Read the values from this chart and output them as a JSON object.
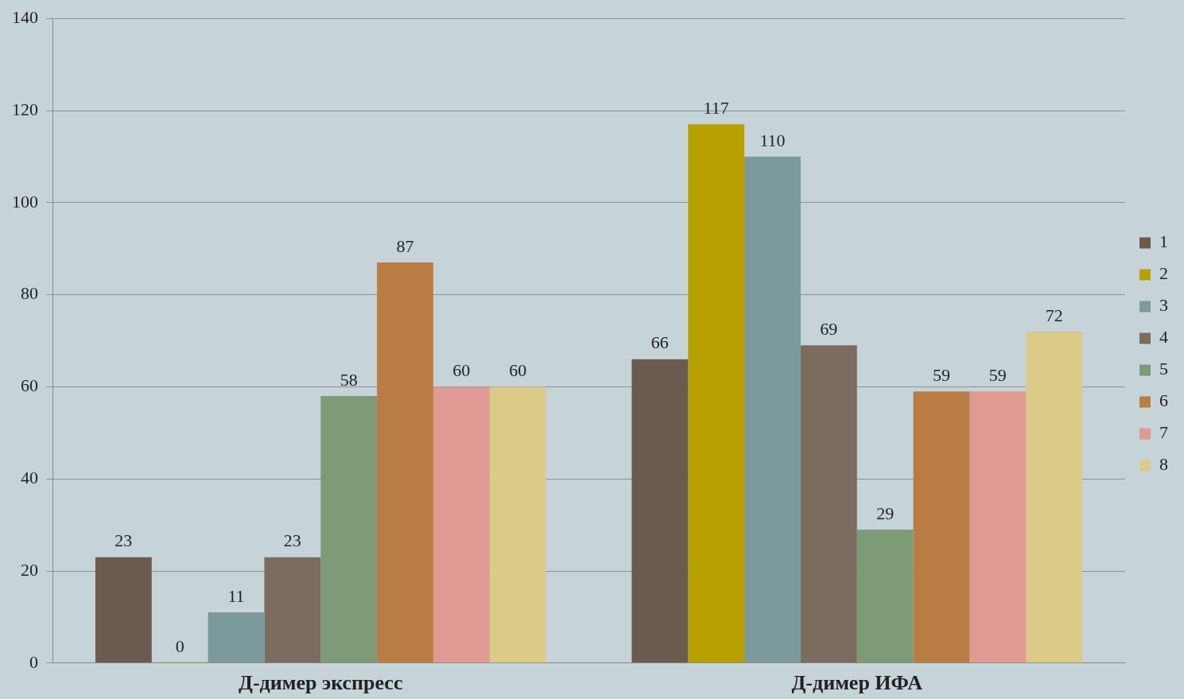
{
  "chart_data": {
    "type": "bar",
    "categories": [
      "Д-димер экспресс",
      "Д-димер ИФА"
    ],
    "series": [
      {
        "name": "1",
        "color": "#6b5b4f",
        "values": [
          23,
          66
        ]
      },
      {
        "name": "2",
        "color": "#b8a000",
        "values": [
          0,
          117
        ]
      },
      {
        "name": "3",
        "color": "#7c9a9b",
        "values": [
          11,
          110
        ]
      },
      {
        "name": "4",
        "color": "#7b6c5f",
        "values": [
          23,
          69
        ]
      },
      {
        "name": "5",
        "color": "#7e9b78",
        "values": [
          58,
          29
        ]
      },
      {
        "name": "6",
        "color": "#b97d43",
        "values": [
          87,
          59
        ]
      },
      {
        "name": "7",
        "color": "#df9b93",
        "values": [
          60,
          59
        ]
      },
      {
        "name": "8",
        "color": "#dbca88",
        "values": [
          60,
          72
        ]
      }
    ],
    "ylim": [
      0,
      140
    ],
    "yticks": [
      0,
      20,
      40,
      60,
      80,
      100,
      120,
      140
    ],
    "grid": "y",
    "legend": "right",
    "data_labels": true
  }
}
